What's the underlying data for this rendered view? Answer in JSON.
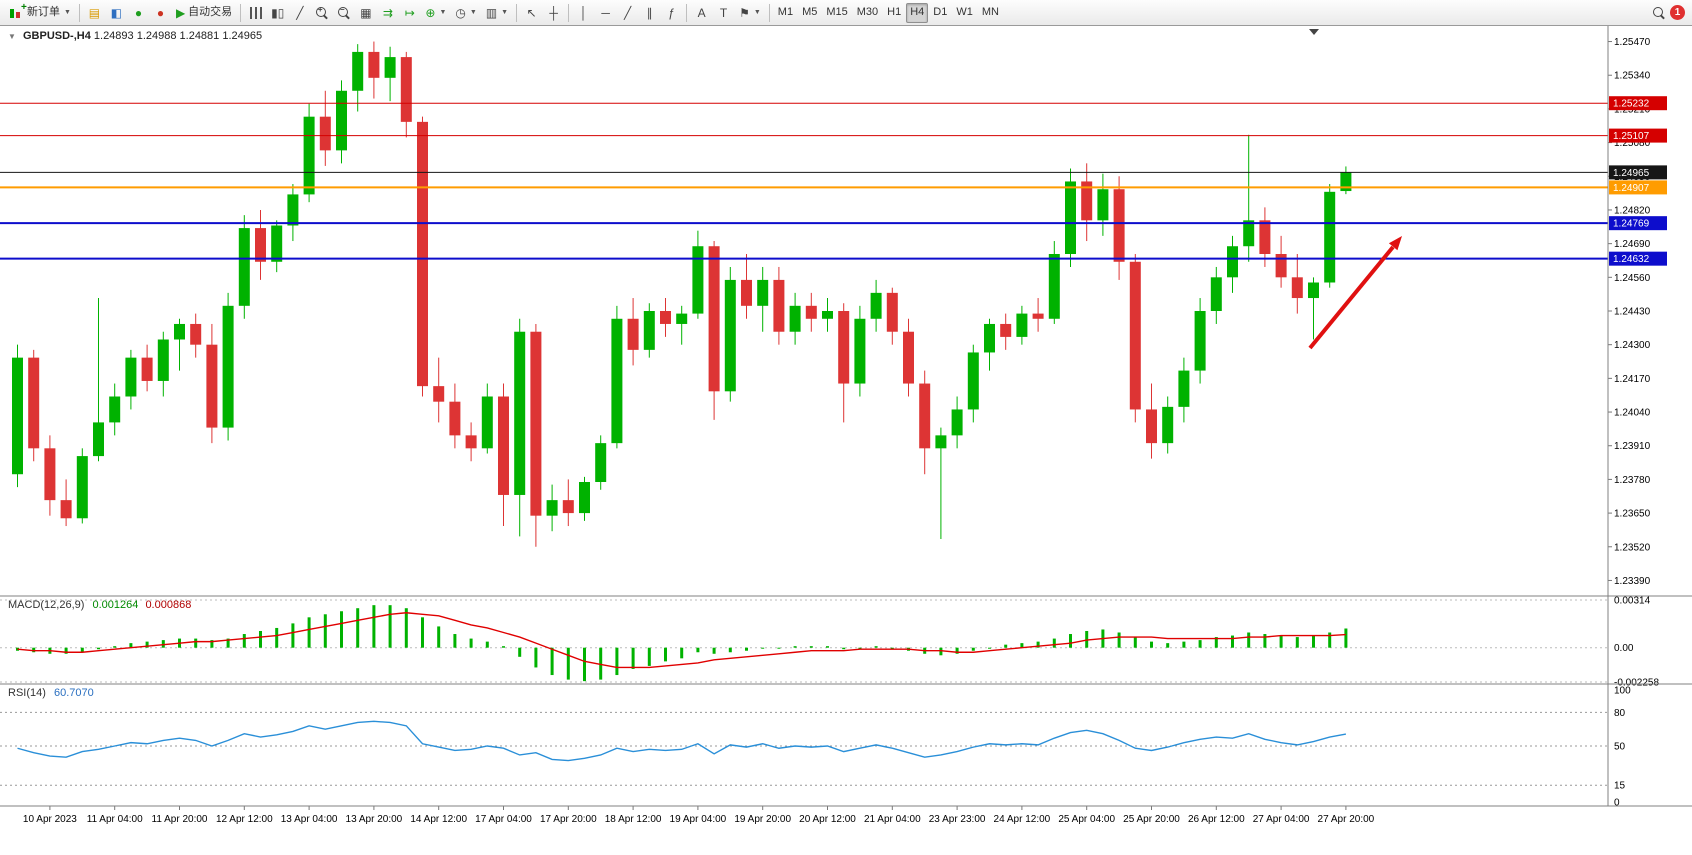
{
  "toolbar": {
    "new_order_label": "新订单",
    "autotrading_label": "自动交易",
    "timeframes": [
      "M1",
      "M5",
      "M15",
      "M30",
      "H1",
      "H4",
      "D1",
      "W1",
      "MN"
    ],
    "active_timeframe": "H4",
    "notification_count": "1"
  },
  "chart_data": {
    "type": "candlestick",
    "symbol_title": "GBPUSD-,H4",
    "ohlc_text": "1.24893 1.24988 1.24881 1.24965",
    "up_color": "#00b200",
    "down_color": "#dd3434",
    "y_range": [
      1.2333,
      1.2553
    ],
    "y_ticks": [
      "1.25470",
      "1.25340",
      "1.25210",
      "1.25080",
      "1.24950",
      "1.24820",
      "1.24690",
      "1.24560",
      "1.24430",
      "1.24300",
      "1.24170",
      "1.24040",
      "1.23910",
      "1.23780",
      "1.23650",
      "1.23520",
      "1.23390"
    ],
    "x_labels": [
      "10 Apr 2023",
      "11 Apr 04:00",
      "11 Apr 20:00",
      "12 Apr 12:00",
      "13 Apr 04:00",
      "13 Apr 20:00",
      "14 Apr 12:00",
      "17 Apr 04:00",
      "17 Apr 20:00",
      "18 Apr 12:00",
      "19 Apr 04:00",
      "19 Apr 20:00",
      "20 Apr 12:00",
      "21 Apr 04:00",
      "23 Apr 23:00",
      "24 Apr 12:00",
      "25 Apr 04:00",
      "25 Apr 20:00",
      "26 Apr 12:00",
      "27 Apr 04:00",
      "27 Apr 20:00"
    ],
    "x_label_start_index": 2,
    "x_label_every": 4,
    "candles": [
      [
        1.238,
        1.243,
        1.2375,
        1.2425
      ],
      [
        1.2425,
        1.2428,
        1.2385,
        1.239
      ],
      [
        1.239,
        1.2395,
        1.2364,
        1.237
      ],
      [
        1.237,
        1.2378,
        1.236,
        1.2363
      ],
      [
        1.2363,
        1.239,
        1.2361,
        1.2387
      ],
      [
        1.2387,
        1.2448,
        1.2385,
        1.24
      ],
      [
        1.24,
        1.2415,
        1.2395,
        1.241
      ],
      [
        1.241,
        1.2428,
        1.2405,
        1.2425
      ],
      [
        1.2425,
        1.243,
        1.2412,
        1.2416
      ],
      [
        1.2416,
        1.2435,
        1.241,
        1.2432
      ],
      [
        1.2432,
        1.244,
        1.242,
        1.2438
      ],
      [
        1.2438,
        1.2442,
        1.2425,
        1.243
      ],
      [
        1.243,
        1.2438,
        1.2392,
        1.2398
      ],
      [
        1.2398,
        1.245,
        1.2393,
        1.2445
      ],
      [
        1.2445,
        1.248,
        1.244,
        1.2475
      ],
      [
        1.2475,
        1.2482,
        1.2455,
        1.2462
      ],
      [
        1.2462,
        1.2478,
        1.2458,
        1.2476
      ],
      [
        1.2476,
        1.2492,
        1.247,
        1.2488
      ],
      [
        1.2488,
        1.2523,
        1.2485,
        1.2518
      ],
      [
        1.2518,
        1.2528,
        1.2499,
        1.2505
      ],
      [
        1.2505,
        1.2532,
        1.25,
        1.2528
      ],
      [
        1.2528,
        1.2546,
        1.252,
        1.2543
      ],
      [
        1.2543,
        1.2547,
        1.2525,
        1.2533
      ],
      [
        1.2533,
        1.2545,
        1.2524,
        1.2541
      ],
      [
        1.2541,
        1.2543,
        1.251,
        1.2516
      ],
      [
        1.2516,
        1.2518,
        1.241,
        1.2414
      ],
      [
        1.2414,
        1.2425,
        1.24,
        1.2408
      ],
      [
        1.2408,
        1.2415,
        1.239,
        1.2395
      ],
      [
        1.2395,
        1.24,
        1.2385,
        1.239
      ],
      [
        1.239,
        1.2415,
        1.2388,
        1.241
      ],
      [
        1.241,
        1.2415,
        1.236,
        1.2372
      ],
      [
        1.2372,
        1.244,
        1.2356,
        1.2435
      ],
      [
        1.2435,
        1.2438,
        1.2352,
        1.2364
      ],
      [
        1.2364,
        1.2376,
        1.2358,
        1.237
      ],
      [
        1.237,
        1.2378,
        1.236,
        1.2365
      ],
      [
        1.2365,
        1.2379,
        1.2362,
        1.2377
      ],
      [
        1.2377,
        1.2395,
        1.2374,
        1.2392
      ],
      [
        1.2392,
        1.2445,
        1.239,
        1.244
      ],
      [
        1.244,
        1.2448,
        1.2422,
        1.2428
      ],
      [
        1.2428,
        1.2446,
        1.2425,
        1.2443
      ],
      [
        1.2443,
        1.2448,
        1.2433,
        1.2438
      ],
      [
        1.2438,
        1.2445,
        1.243,
        1.2442
      ],
      [
        1.2442,
        1.2474,
        1.244,
        1.2468
      ],
      [
        1.2468,
        1.247,
        1.2401,
        1.2412
      ],
      [
        1.2412,
        1.246,
        1.2408,
        1.2455
      ],
      [
        1.2455,
        1.2465,
        1.244,
        1.2445
      ],
      [
        1.2445,
        1.246,
        1.2435,
        1.2455
      ],
      [
        1.2455,
        1.246,
        1.243,
        1.2435
      ],
      [
        1.2435,
        1.245,
        1.243,
        1.2445
      ],
      [
        1.2445,
        1.245,
        1.2435,
        1.244
      ],
      [
        1.244,
        1.2448,
        1.2435,
        1.2443
      ],
      [
        1.2443,
        1.2446,
        1.24,
        1.2415
      ],
      [
        1.2415,
        1.2445,
        1.241,
        1.244
      ],
      [
        1.244,
        1.2455,
        1.2435,
        1.245
      ],
      [
        1.245,
        1.2452,
        1.243,
        1.2435
      ],
      [
        1.2435,
        1.244,
        1.241,
        1.2415
      ],
      [
        1.2415,
        1.242,
        1.238,
        1.239
      ],
      [
        1.239,
        1.2398,
        1.2355,
        1.2395
      ],
      [
        1.2395,
        1.241,
        1.239,
        1.2405
      ],
      [
        1.2405,
        1.243,
        1.24,
        1.2427
      ],
      [
        1.2427,
        1.244,
        1.242,
        1.2438
      ],
      [
        1.2438,
        1.2442,
        1.2428,
        1.2433
      ],
      [
        1.2433,
        1.2445,
        1.243,
        1.2442
      ],
      [
        1.2442,
        1.2448,
        1.2435,
        1.244
      ],
      [
        1.244,
        1.247,
        1.2438,
        1.2465
      ],
      [
        1.2465,
        1.2498,
        1.246,
        1.2493
      ],
      [
        1.2493,
        1.25,
        1.247,
        1.2478
      ],
      [
        1.2478,
        1.2496,
        1.2472,
        1.249
      ],
      [
        1.249,
        1.2495,
        1.2455,
        1.2462
      ],
      [
        1.2462,
        1.2465,
        1.24,
        1.2405
      ],
      [
        1.2405,
        1.2415,
        1.2386,
        1.2392
      ],
      [
        1.2392,
        1.241,
        1.2388,
        1.2406
      ],
      [
        1.2406,
        1.2425,
        1.24,
        1.242
      ],
      [
        1.242,
        1.2448,
        1.2415,
        1.2443
      ],
      [
        1.2443,
        1.246,
        1.2438,
        1.2456
      ],
      [
        1.2456,
        1.2472,
        1.245,
        1.2468
      ],
      [
        1.2468,
        1.2511,
        1.2462,
        1.2478
      ],
      [
        1.2478,
        1.2483,
        1.246,
        1.2465
      ],
      [
        1.2465,
        1.2472,
        1.2452,
        1.2456
      ],
      [
        1.2456,
        1.2465,
        1.2442,
        1.2448
      ],
      [
        1.2448,
        1.2456,
        1.2432,
        1.2454
      ],
      [
        1.2454,
        1.2492,
        1.2452,
        1.2489
      ],
      [
        1.24893,
        1.24988,
        1.24881,
        1.24965
      ]
    ],
    "hlines": [
      {
        "price": 1.25232,
        "color": "#d50000",
        "label": "1.25232",
        "width": 1
      },
      {
        "price": 1.25107,
        "color": "#d50000",
        "label": "1.25107",
        "width": 1
      },
      {
        "price": 1.24965,
        "color": "#161616",
        "label": "1.24965",
        "width": 1
      },
      {
        "price": 1.24907,
        "color": "#ff9c00",
        "label": "1.24907",
        "width": 2
      },
      {
        "price": 1.24769,
        "color": "#0d0dcc",
        "label": "1.24769",
        "width": 2
      },
      {
        "price": 1.24632,
        "color": "#0d0dcc",
        "label": "1.24632",
        "width": 2
      }
    ],
    "annotation_arrow": {
      "color": "#e01010"
    },
    "macd": {
      "label": "MACD(12,26,9)",
      "value_main": "0.001264",
      "value_signal": "0.000868",
      "color": "#00b200",
      "signal_color": "#e00000",
      "range": [
        -0.002258,
        0.00314
      ],
      "y_ticks": [
        "0.00314",
        "0.00",
        "-0.002258"
      ],
      "histogram": [
        -0.0002,
        -0.0003,
        -0.0004,
        -0.0004,
        -0.0003,
        -0.0001,
        0.0001,
        0.0003,
        0.0004,
        0.0005,
        0.0006,
        0.0006,
        0.0005,
        0.0006,
        0.0009,
        0.0011,
        0.0013,
        0.0016,
        0.002,
        0.0022,
        0.0024,
        0.0026,
        0.0028,
        0.0028,
        0.0026,
        0.002,
        0.0014,
        0.0009,
        0.0006,
        0.0004,
        0.0001,
        -0.0006,
        -0.0013,
        -0.0018,
        -0.0021,
        -0.0022,
        -0.0021,
        -0.0018,
        -0.0014,
        -0.0012,
        -0.0009,
        -0.0007,
        -0.0003,
        -0.0004,
        -0.0003,
        -0.0002,
        0.0,
        0.0,
        0.0001,
        0.0001,
        0.0001,
        -0.0001,
        0.0,
        0.0001,
        0.0,
        -0.0002,
        -0.0004,
        -0.0005,
        -0.0004,
        -0.0002,
        0.0,
        0.0002,
        0.0003,
        0.0004,
        0.0006,
        0.0009,
        0.0011,
        0.0012,
        0.001,
        0.0007,
        0.0004,
        0.0003,
        0.0004,
        0.0005,
        0.0007,
        0.0008,
        0.001,
        0.0009,
        0.0008,
        0.0007,
        0.0008,
        0.001,
        0.001264
      ],
      "signal": [
        -0.0001,
        -0.0002,
        -0.0002,
        -0.0003,
        -0.0003,
        -0.0002,
        -0.0001,
        0.0,
        0.0001,
        0.0002,
        0.0003,
        0.0004,
        0.0004,
        0.0005,
        0.0006,
        0.0007,
        0.0008,
        0.001,
        0.0012,
        0.0014,
        0.0016,
        0.0018,
        0.002,
        0.0022,
        0.0023,
        0.0022,
        0.0021,
        0.0018,
        0.0015,
        0.0013,
        0.001,
        0.0007,
        0.0003,
        -0.0001,
        -0.0005,
        -0.0009,
        -0.0011,
        -0.0013,
        -0.0013,
        -0.0013,
        -0.0012,
        -0.0011,
        -0.001,
        -0.0008,
        -0.0007,
        -0.0006,
        -0.0005,
        -0.0004,
        -0.0003,
        -0.0002,
        -0.0002,
        -0.0002,
        -0.0001,
        -0.0001,
        -0.0001,
        -0.0001,
        -0.0002,
        -0.0002,
        -0.0003,
        -0.0003,
        -0.0002,
        -0.0001,
        0.0,
        0.0001,
        0.0002,
        0.0003,
        0.0005,
        0.0006,
        0.0007,
        0.0007,
        0.0007,
        0.0006,
        0.0006,
        0.0006,
        0.0006,
        0.0006,
        0.0007,
        0.0007,
        0.0008,
        0.0008,
        0.0008,
        0.0008,
        0.000868
      ]
    },
    "rsi": {
      "label": "RSI(14)",
      "value_text": "60.7070",
      "color": "#2a8fd8",
      "range": [
        0,
        100
      ],
      "levels": [
        80,
        50,
        15
      ],
      "y_ticks": [
        "100",
        "80",
        "50",
        "15",
        "0"
      ],
      "values": [
        48,
        44,
        41,
        40,
        45,
        47,
        50,
        53,
        52,
        55,
        57,
        55,
        50,
        55,
        61,
        58,
        60,
        63,
        68,
        65,
        68,
        71,
        72,
        71,
        68,
        52,
        49,
        46,
        47,
        50,
        48,
        42,
        44,
        38,
        37,
        39,
        42,
        48,
        45,
        47,
        46,
        47,
        52,
        43,
        51,
        49,
        52,
        48,
        50,
        49,
        50,
        45,
        48,
        51,
        48,
        44,
        40,
        42,
        45,
        49,
        52,
        51,
        52,
        51,
        57,
        62,
        64,
        61,
        55,
        48,
        46,
        49,
        53,
        56,
        58,
        57,
        61,
        56,
        53,
        51,
        54,
        58,
        60.7
      ]
    }
  }
}
